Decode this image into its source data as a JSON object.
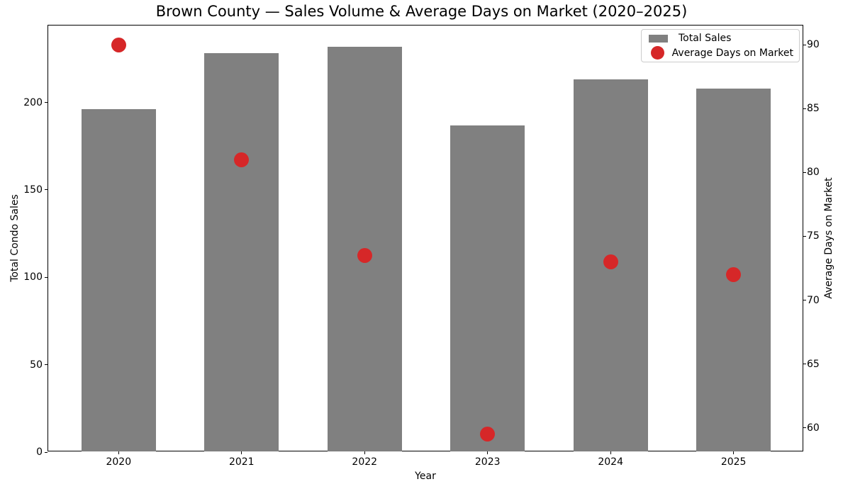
{
  "title": "Brown County — Sales Volume & Average Days on Market (2020–2025)",
  "chart_data": {
    "type": "bar",
    "subtype": "bar-and-scatter-combo-dual-axis",
    "title": "Brown County — Sales Volume & Average Days on Market (2020–2025)",
    "xlabel": "Year",
    "categories": [
      "2020",
      "2021",
      "2022",
      "2023",
      "2024",
      "2025"
    ],
    "series": [
      {
        "name": "Total Sales",
        "type": "bar",
        "axis": "left",
        "color": "#808080",
        "values": [
          196,
          228,
          232,
          187,
          213,
          208
        ]
      },
      {
        "name": "Average Days on Market",
        "type": "scatter",
        "axis": "right",
        "color": "#d62728",
        "values": [
          90,
          81,
          73.5,
          59.5,
          73,
          72
        ]
      }
    ],
    "left_axis": {
      "label": "Total Condo Sales",
      "ticks": [
        0,
        50,
        100,
        150,
        200
      ],
      "range": [
        0,
        244
      ]
    },
    "right_axis": {
      "label": "Average Days on Market",
      "ticks": [
        60,
        65,
        70,
        75,
        80,
        85,
        90
      ],
      "range": [
        58.1,
        91.5
      ]
    },
    "grid": false,
    "legend_position": "upper right",
    "background": "#ffffff",
    "bar_color": "#808080",
    "scatter_color": "#d62728"
  },
  "legend": {
    "items": [
      {
        "label": "Total Sales",
        "swatch": "gray-bar"
      },
      {
        "label": "Average Days on Market",
        "swatch": "red-dot"
      }
    ]
  }
}
